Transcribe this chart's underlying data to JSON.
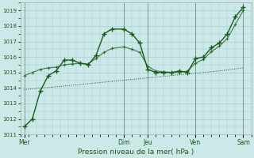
{
  "xlabel": "Pression niveau de la mer( hPa )",
  "bg_color": "#cce8e8",
  "grid_color": "#aacece",
  "line_color": "#1a5c1a",
  "ylim": [
    1011,
    1019.5
  ],
  "yticks": [
    1011,
    1012,
    1013,
    1014,
    1015,
    1016,
    1017,
    1018,
    1019
  ],
  "day_labels": [
    "Mer",
    "Dim",
    "Jeu",
    "Ven",
    "Sam"
  ],
  "day_positions": [
    0.5,
    13,
    16,
    22,
    28
  ],
  "xlim": [
    0,
    29
  ],
  "line1_x": [
    0.5,
    1.5,
    2.5,
    3.5,
    4.5,
    5.5,
    6.5,
    7.5,
    8.5,
    9.5,
    10.5,
    11.5,
    13,
    14,
    15,
    16,
    17,
    18,
    19,
    20,
    21,
    22,
    23,
    24,
    25,
    26,
    27,
    28
  ],
  "line1_y": [
    1011.5,
    1012.0,
    1013.8,
    1014.8,
    1015.1,
    1015.8,
    1015.8,
    1015.6,
    1015.5,
    1016.1,
    1017.5,
    1017.8,
    1017.8,
    1017.5,
    1016.9,
    1015.2,
    1015.0,
    1015.0,
    1015.0,
    1015.1,
    1015.0,
    1015.9,
    1016.0,
    1016.6,
    1016.9,
    1017.5,
    1018.6,
    1019.2
  ],
  "line2_x": [
    0.5,
    1.5,
    2.5,
    3.5,
    4.5,
    5.5,
    6.5,
    7.5,
    8.5,
    9.5,
    10.5,
    11.5,
    13,
    14,
    15,
    16,
    17,
    18,
    19,
    20,
    21,
    22,
    23,
    24,
    25,
    26,
    27,
    28
  ],
  "line2_y": [
    1014.8,
    1015.0,
    1015.2,
    1015.3,
    1015.35,
    1015.5,
    1015.55,
    1015.6,
    1015.55,
    1015.9,
    1016.3,
    1016.55,
    1016.65,
    1016.5,
    1016.3,
    1015.4,
    1015.1,
    1015.05,
    1015.0,
    1015.0,
    1015.1,
    1015.6,
    1015.85,
    1016.35,
    1016.7,
    1017.2,
    1018.1,
    1019.0
  ],
  "line3_x": [
    0.5,
    5,
    10,
    15,
    20,
    25,
    28
  ],
  "line3_y": [
    1013.9,
    1014.1,
    1014.35,
    1014.6,
    1014.85,
    1015.1,
    1015.3
  ]
}
